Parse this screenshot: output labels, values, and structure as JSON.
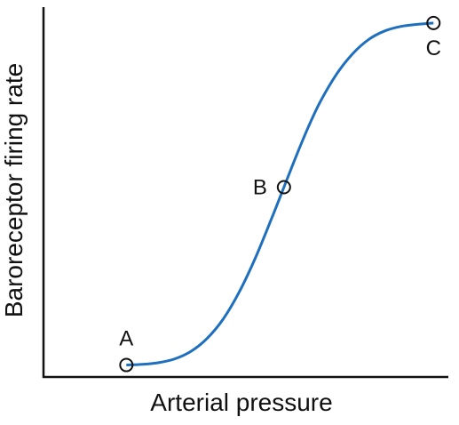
{
  "chart_data": {
    "type": "line",
    "xlabel": "Arterial pressure",
    "ylabel": "Baroreceptor firing rate",
    "grid": false,
    "legend": "none",
    "line_color": "#1f6fbf",
    "axis_color": "#111111",
    "series": [
      {
        "points": [
          {
            "x": 0,
            "y": 0
          },
          {
            "x": 8,
            "y": 0.2
          },
          {
            "x": 16,
            "y": 0.7
          },
          {
            "x": 24,
            "y": 1.8
          },
          {
            "x": 32,
            "y": 4.0
          },
          {
            "x": 40,
            "y": 7.8
          },
          {
            "x": 48,
            "y": 13.5
          },
          {
            "x": 56,
            "y": 21.5
          },
          {
            "x": 64,
            "y": 31.5
          },
          {
            "x": 72,
            "y": 43.0
          },
          {
            "x": 78,
            "y": 52.0
          },
          {
            "x": 84,
            "y": 61.0
          },
          {
            "x": 90,
            "y": 69.5
          },
          {
            "x": 96,
            "y": 77.0
          },
          {
            "x": 104,
            "y": 85.0
          },
          {
            "x": 112,
            "y": 91.0
          },
          {
            "x": 120,
            "y": 95.2
          },
          {
            "x": 128,
            "y": 97.7
          },
          {
            "x": 136,
            "y": 99.0
          },
          {
            "x": 144,
            "y": 99.6
          },
          {
            "x": 152,
            "y": 100
          }
        ]
      }
    ],
    "annotations": [
      {
        "label": "A",
        "x": 0,
        "y": 0
      },
      {
        "label": "B",
        "x": 78,
        "y": 52
      },
      {
        "label": "C",
        "x": 152,
        "y": 100
      }
    ],
    "xlim": [
      -41,
      162
    ],
    "ylim": [
      -3.5,
      101
    ]
  }
}
